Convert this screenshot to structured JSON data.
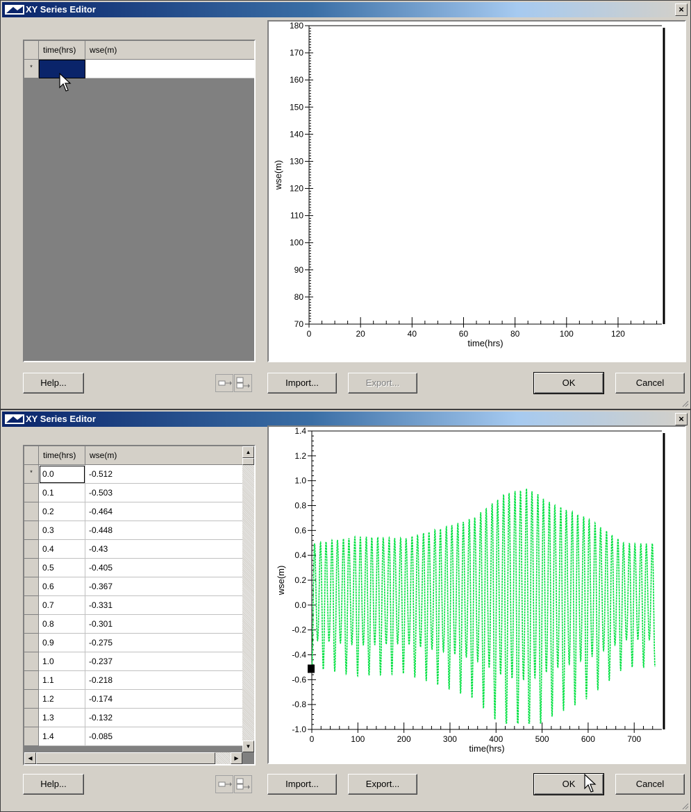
{
  "window1": {
    "title": "XY Series Editor",
    "close_label": "×",
    "table": {
      "columns": [
        "time(hrs)",
        "wse(m)"
      ],
      "new_row_marker": "*"
    },
    "chart_data": {
      "type": "line",
      "xlabel": "time(hrs)",
      "ylabel": "wse(m)",
      "xlim": [
        0,
        137
      ],
      "ylim": [
        70,
        180
      ],
      "x_ticks": [
        "0",
        "20",
        "40",
        "60",
        "80",
        "100",
        "120"
      ],
      "y_ticks": [
        "70",
        "80",
        "90",
        "100",
        "110",
        "120",
        "130",
        "140",
        "150",
        "160",
        "170",
        "180"
      ],
      "series": []
    },
    "buttons": {
      "help": "Help...",
      "import": "Import...",
      "export": "Export...",
      "ok": "OK",
      "cancel": "Cancel"
    }
  },
  "window2": {
    "title": "XY Series Editor",
    "close_label": "×",
    "table": {
      "columns": [
        "time(hrs)",
        "wse(m)"
      ],
      "new_row_marker": "*",
      "rows": [
        [
          "0.0",
          "-0.512"
        ],
        [
          "0.1",
          "-0.503"
        ],
        [
          "0.2",
          "-0.464"
        ],
        [
          "0.3",
          "-0.448"
        ],
        [
          "0.4",
          "-0.43"
        ],
        [
          "0.5",
          "-0.405"
        ],
        [
          "0.6",
          "-0.367"
        ],
        [
          "0.7",
          "-0.331"
        ],
        [
          "0.8",
          "-0.301"
        ],
        [
          "0.9",
          "-0.275"
        ],
        [
          "1.0",
          "-0.237"
        ],
        [
          "1.1",
          "-0.218"
        ],
        [
          "1.2",
          "-0.174"
        ],
        [
          "1.3",
          "-0.132"
        ],
        [
          "1.4",
          "-0.085"
        ]
      ]
    },
    "chart_data": {
      "type": "line",
      "xlabel": "time(hrs)",
      "ylabel": "wse(m)",
      "xlim": [
        0,
        760
      ],
      "ylim": [
        -1.0,
        1.4
      ],
      "x_ticks": [
        "0",
        "100",
        "200",
        "300",
        "400",
        "500",
        "600",
        "700"
      ],
      "y_ticks": [
        "-1.0",
        "-0.8",
        "-0.6",
        "-0.4",
        "-0.2",
        "0.0",
        "0.2",
        "0.4",
        "0.6",
        "0.8",
        "1.0",
        "1.2",
        "1.4"
      ],
      "series": [
        {
          "color": "#00e040",
          "x_range": [
            0,
            745
          ],
          "period_hrs": 12.42,
          "mean": 0.05,
          "envelope": [
            [
              0,
              0.55
            ],
            [
              100,
              0.62
            ],
            [
              200,
              0.6
            ],
            [
              280,
              0.7
            ],
            [
              350,
              0.8
            ],
            [
              420,
              1.05
            ],
            [
              470,
              1.1
            ],
            [
              520,
              0.95
            ],
            [
              600,
              0.8
            ],
            [
              680,
              0.55
            ],
            [
              745,
              0.55
            ]
          ]
        }
      ]
    },
    "buttons": {
      "help": "Help...",
      "import": "Import...",
      "export": "Export...",
      "ok": "OK",
      "cancel": "Cancel"
    }
  }
}
